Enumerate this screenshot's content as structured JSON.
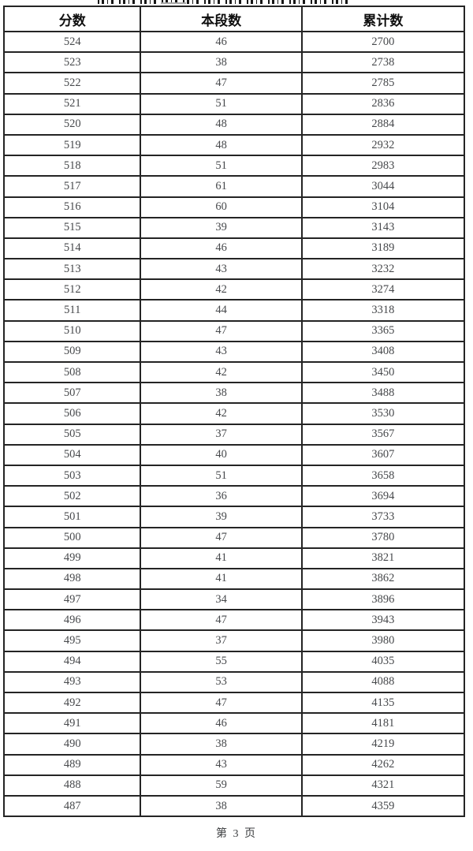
{
  "page": {
    "footer_label": "第 3 页"
  },
  "colors": {
    "border": "#242424",
    "header_text": "#0e0e0e",
    "cell_text": "#47494c",
    "footer_text": "#3c3e40",
    "background": "#ffffff"
  },
  "table": {
    "headers": [
      "分数",
      "本段数",
      "累计数"
    ],
    "rows": [
      [
        524,
        46,
        2700
      ],
      [
        523,
        38,
        2738
      ],
      [
        522,
        47,
        2785
      ],
      [
        521,
        51,
        2836
      ],
      [
        520,
        48,
        2884
      ],
      [
        519,
        48,
        2932
      ],
      [
        518,
        51,
        2983
      ],
      [
        517,
        61,
        3044
      ],
      [
        516,
        60,
        3104
      ],
      [
        515,
        39,
        3143
      ],
      [
        514,
        46,
        3189
      ],
      [
        513,
        43,
        3232
      ],
      [
        512,
        42,
        3274
      ],
      [
        511,
        44,
        3318
      ],
      [
        510,
        47,
        3365
      ],
      [
        509,
        43,
        3408
      ],
      [
        508,
        42,
        3450
      ],
      [
        507,
        38,
        3488
      ],
      [
        506,
        42,
        3530
      ],
      [
        505,
        37,
        3567
      ],
      [
        504,
        40,
        3607
      ],
      [
        503,
        51,
        3658
      ],
      [
        502,
        36,
        3694
      ],
      [
        501,
        39,
        3733
      ],
      [
        500,
        47,
        3780
      ],
      [
        499,
        41,
        3821
      ],
      [
        498,
        41,
        3862
      ],
      [
        497,
        34,
        3896
      ],
      [
        496,
        47,
        3943
      ],
      [
        495,
        37,
        3980
      ],
      [
        494,
        55,
        4035
      ],
      [
        493,
        53,
        4088
      ],
      [
        492,
        47,
        4135
      ],
      [
        491,
        46,
        4181
      ],
      [
        490,
        38,
        4219
      ],
      [
        489,
        43,
        4262
      ],
      [
        488,
        59,
        4321
      ],
      [
        487,
        38,
        4359
      ]
    ]
  }
}
